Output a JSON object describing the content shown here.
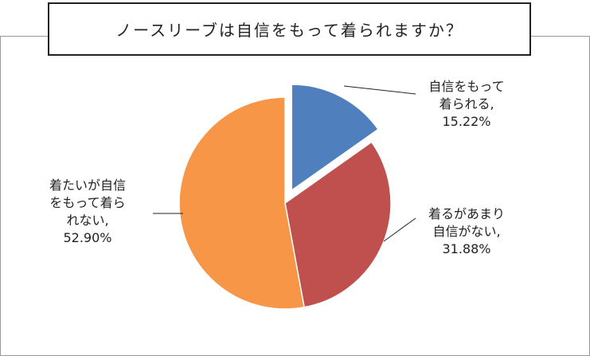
{
  "chart_data": {
    "type": "pie",
    "title": "ノースリーブは自信をもって着られますか？",
    "categories": [
      "自信をもって着られる,",
      "着るがあまり自信がない,",
      "着たいが自信をもって着られない,"
    ],
    "values": [
      15.22,
      31.88,
      52.9
    ],
    "value_labels": [
      "15.22%",
      "31.88%",
      "52.90%"
    ],
    "colors": [
      "#4f7fbd",
      "#c0504d",
      "#f79646"
    ]
  }
}
